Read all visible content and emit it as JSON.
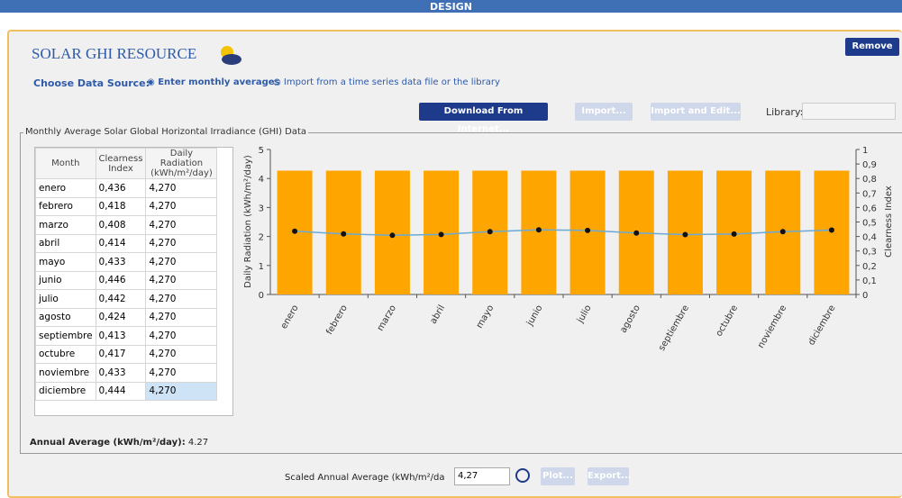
{
  "header": {
    "title": "DESIGN"
  },
  "panel": {
    "title": "SOLAR GHI RESOURCE",
    "remove": "Remove",
    "source_label": "Choose Data Source:",
    "option_1": "Enter monthly averages",
    "option_2": "Import from a time series data file or the library",
    "buttons": {
      "download": "Download From Internet...",
      "import": "Import...",
      "import_edit": "Import and Edit...",
      "library": "Library:"
    },
    "group_title": "Monthly Average Solar Global Horizontal Irradiance (GHI) Data",
    "annual_label": "Annual Average (kWh/m²/day):",
    "annual_value": "4.27",
    "scaled_label": "Scaled Annual Average (kWh/m²/da",
    "scaled_value": "4,27",
    "plot": "Plot...",
    "export": "Export..."
  },
  "table": {
    "columns": [
      "Month",
      "Clearness Index",
      "Daily Radiation (kWh/m²/day)"
    ],
    "rows": [
      [
        "enero",
        "0,436",
        "4,270"
      ],
      [
        "febrero",
        "0,418",
        "4,270"
      ],
      [
        "marzo",
        "0,408",
        "4,270"
      ],
      [
        "abril",
        "0,414",
        "4,270"
      ],
      [
        "mayo",
        "0,433",
        "4,270"
      ],
      [
        "junio",
        "0,446",
        "4,270"
      ],
      [
        "julio",
        "0,442",
        "4,270"
      ],
      [
        "agosto",
        "0,424",
        "4,270"
      ],
      [
        "septiembre",
        "0,413",
        "4,270"
      ],
      [
        "octubre",
        "0,417",
        "4,270"
      ],
      [
        "noviembre",
        "0,433",
        "4,270"
      ],
      [
        "diciembre",
        "0,444",
        "4,270"
      ]
    ]
  },
  "chart_data": {
    "type": "bar",
    "y_label": "Daily Radiation (kWh/m²/day)",
    "y2_label": "Clearness Index",
    "categories": [
      "enero",
      "febrero",
      "marzo",
      "abril",
      "mayo",
      "junio",
      "julio",
      "agosto",
      "septiembre",
      "octubre",
      "noviembre",
      "diciembre"
    ],
    "series": [
      {
        "color": "#ffa500",
        "values": [
          4.27,
          4.27,
          4.27,
          4.27,
          4.27,
          4.27,
          4.27,
          4.27,
          4.27,
          4.27,
          4.27,
          4.27
        ]
      },
      {
        "type": "line",
        "axis": "y2",
        "color": "#6aaad6",
        "values": [
          0.436,
          0.418,
          0.408,
          0.414,
          0.433,
          0.446,
          0.442,
          0.424,
          0.413,
          0.417,
          0.433,
          0.444
        ]
      }
    ],
    "ylim": [
      0,
      5
    ],
    "yticks": [
      0,
      1,
      2,
      3,
      4,
      5
    ],
    "y2lim": [
      0,
      1
    ],
    "y2ticks": [
      0,
      {
        "value": 0.1,
        "label": "0,1"
      },
      {
        "value": 0.2,
        "label": "0,2"
      },
      {
        "value": 0.3,
        "label": "0,3"
      },
      {
        "value": 0.4,
        "label": "0,4"
      },
      {
        "value": 0.5,
        "label": "0,5"
      },
      {
        "value": 0.6,
        "label": "0,6"
      },
      {
        "value": 0.7,
        "label": "0,7"
      },
      {
        "value": 0.8,
        "label": "0,8"
      },
      {
        "value": 0.9,
        "label": "0,9"
      },
      1
    ]
  }
}
